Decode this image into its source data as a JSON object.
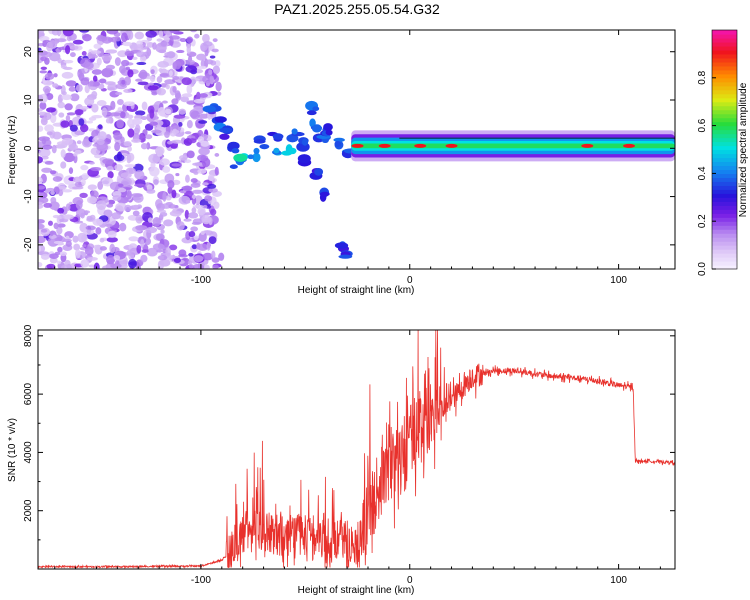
{
  "title": "PAZ1.2025.255.05.54.G32",
  "colors": {
    "snr_line": "#e8312c",
    "axis": "#000000"
  },
  "chart_data": [
    {
      "type": "heatmap",
      "name": "spectrogram",
      "xlabel": "Height of straight line (km)",
      "ylabel": "Frequency (Hz)",
      "xlim": [
        -178,
        127
      ],
      "ylim": [
        -25,
        24.5
      ],
      "xticks": [
        -100,
        0,
        100
      ],
      "yticks": [
        -20,
        -10,
        0,
        10,
        20
      ],
      "xtick_labels": [
        "-100",
        "0",
        "100"
      ],
      "ytick_labels": [
        "-20",
        "-10",
        "0",
        "10",
        "20"
      ],
      "colorbar": {
        "label": "Normalized spectral amplitude",
        "range": [
          0,
          1
        ],
        "ticks": [
          0.0,
          0.2,
          0.4,
          0.6,
          0.8
        ],
        "tick_labels": [
          "0.0",
          "0.2",
          "0.4",
          "0.6",
          "0.8"
        ],
        "colormap": "rainbow: pale-lavender → violet → blue → cyan → green → yellow → orange → red → magenta"
      },
      "features": {
        "noise_region_x": [
          -178,
          -90
        ],
        "carrier_start_x": -28,
        "carrier_freq_hz": 0.5,
        "carrier_peaks_x": [
          -25,
          -12,
          5,
          20,
          85,
          105
        ]
      }
    },
    {
      "type": "line",
      "name": "snr",
      "xlabel": "Height of straight line (km)",
      "ylabel": "SNR (10 * v/v)",
      "xlim": [
        -178,
        127
      ],
      "ylim": [
        0,
        8200
      ],
      "xticks": [
        -100,
        0,
        100
      ],
      "yticks": [
        2000,
        4000,
        6000,
        8000
      ],
      "xtick_labels": [
        "-100",
        "0",
        "100"
      ],
      "ytick_labels": [
        "2000",
        "4000",
        "6000",
        "8000"
      ],
      "series": [
        {
          "name": "SNR",
          "x": [
            -178,
            -140,
            -100,
            -90,
            -85,
            -80,
            -75,
            -70,
            -65,
            -60,
            -55,
            -50,
            -45,
            -40,
            -35,
            -30,
            -25,
            -20,
            -15,
            -10,
            -5,
            0,
            5,
            10,
            15,
            20,
            25,
            30,
            40,
            50,
            60,
            70,
            80,
            90,
            100,
            105,
            107,
            108,
            110,
            115,
            120,
            127
          ],
          "values": [
            80,
            80,
            100,
            300,
            700,
            1200,
            1500,
            1300,
            1200,
            1100,
            1300,
            1000,
            1200,
            900,
            1000,
            1000,
            700,
            1800,
            2800,
            3500,
            3800,
            4500,
            5000,
            5200,
            5500,
            5800,
            6200,
            6600,
            6800,
            6800,
            6700,
            6600,
            6550,
            6450,
            6300,
            6250,
            6200,
            3700,
            3700,
            3700,
            3680,
            3650
          ]
        }
      ]
    }
  ]
}
